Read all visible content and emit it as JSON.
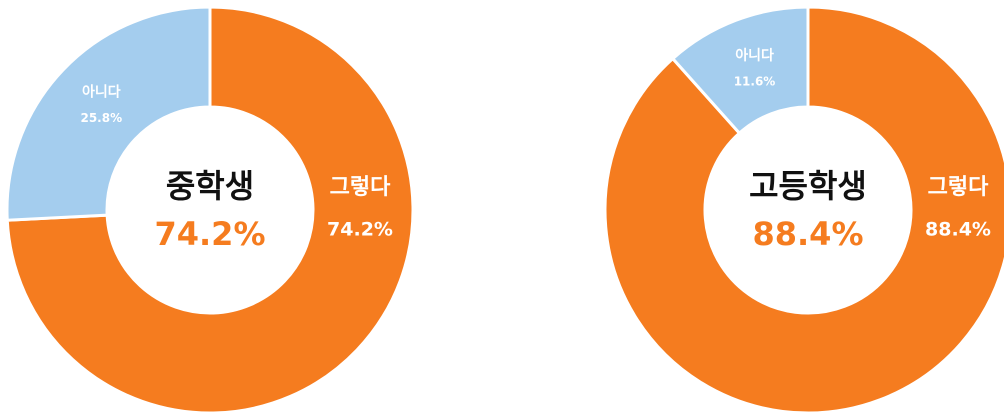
{
  "chart_data": [
    {
      "type": "donut",
      "title": "중학생",
      "center_label": "74.2%",
      "categories": [
        "그렇다",
        "아니다"
      ],
      "values": [
        74.2,
        25.8
      ],
      "value_labels": [
        "74.2%",
        "25.8%"
      ],
      "colors": [
        "#f57c1f",
        "#a4cdee"
      ]
    },
    {
      "type": "donut",
      "title": "고등학생",
      "center_label": "88.4%",
      "categories": [
        "그렇다",
        "아니다"
      ],
      "values": [
        88.4,
        11.6
      ],
      "value_labels": [
        "88.4%",
        "11.6%"
      ],
      "colors": [
        "#f57c1f",
        "#a4cdee"
      ]
    }
  ]
}
